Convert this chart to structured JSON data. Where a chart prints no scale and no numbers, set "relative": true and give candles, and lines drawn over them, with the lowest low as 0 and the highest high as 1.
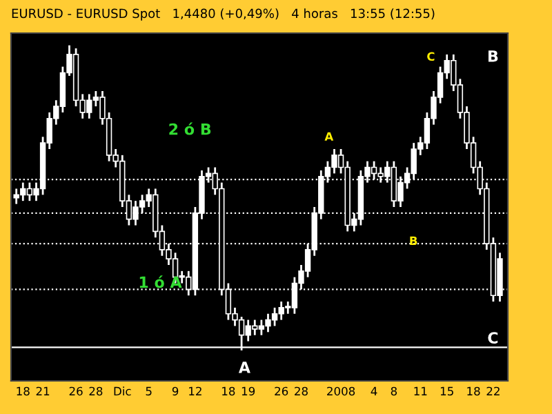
{
  "chart_data": {
    "type": "candlestick",
    "title": "EURUSD - EURUSD Spot   1,4480 (+0,49%)   4 horas   13:55 (12:55)",
    "relative": true,
    "color": "#ffffff",
    "categories": [
      null,
      "18",
      null,
      null,
      "21",
      null,
      null,
      null,
      null,
      "26",
      null,
      null,
      "28",
      null,
      null,
      null,
      "Dic",
      null,
      null,
      null,
      "5",
      null,
      null,
      null,
      "9",
      null,
      null,
      "12",
      null,
      null,
      null,
      null,
      "18",
      null,
      null,
      "19",
      null,
      null,
      null,
      null,
      "26",
      null,
      null,
      "28",
      null,
      null,
      null,
      null,
      null,
      "2008",
      null,
      null,
      null,
      null,
      "4",
      null,
      null,
      "8",
      null,
      null,
      null,
      "11",
      null,
      null,
      null,
      "15",
      null,
      null,
      null,
      "18",
      null,
      null,
      "22",
      null
    ],
    "ohlc": [
      [
        0.5,
        0.53,
        0.48,
        0.51
      ],
      [
        0.51,
        0.55,
        0.49,
        0.53
      ],
      [
        0.53,
        0.55,
        0.49,
        0.51
      ],
      [
        0.51,
        0.55,
        0.49,
        0.53
      ],
      [
        0.53,
        0.7,
        0.51,
        0.68
      ],
      [
        0.68,
        0.78,
        0.66,
        0.76
      ],
      [
        0.76,
        0.82,
        0.74,
        0.8
      ],
      [
        0.8,
        0.93,
        0.78,
        0.91
      ],
      [
        0.91,
        1.0,
        0.9,
        0.97
      ],
      [
        0.97,
        0.99,
        0.8,
        0.82
      ],
      [
        0.82,
        0.84,
        0.76,
        0.78
      ],
      [
        0.78,
        0.84,
        0.76,
        0.82
      ],
      [
        0.82,
        0.85,
        0.8,
        0.83
      ],
      [
        0.83,
        0.85,
        0.74,
        0.76
      ],
      [
        0.76,
        0.78,
        0.62,
        0.64
      ],
      [
        0.64,
        0.66,
        0.6,
        0.62
      ],
      [
        0.62,
        0.64,
        0.47,
        0.49
      ],
      [
        0.49,
        0.51,
        0.41,
        0.43
      ],
      [
        0.43,
        0.49,
        0.41,
        0.47
      ],
      [
        0.47,
        0.51,
        0.45,
        0.49
      ],
      [
        0.49,
        0.53,
        0.47,
        0.51
      ],
      [
        0.51,
        0.53,
        0.37,
        0.39
      ],
      [
        0.39,
        0.41,
        0.31,
        0.33
      ],
      [
        0.33,
        0.35,
        0.28,
        0.3
      ],
      [
        0.3,
        0.32,
        0.22,
        0.24
      ],
      [
        0.24,
        0.26,
        0.22,
        0.24
      ],
      [
        0.24,
        0.26,
        0.18,
        0.2
      ],
      [
        0.2,
        0.47,
        0.18,
        0.45
      ],
      [
        0.45,
        0.59,
        0.43,
        0.57
      ],
      [
        0.57,
        0.6,
        0.55,
        0.58
      ],
      [
        0.58,
        0.6,
        0.51,
        0.53
      ],
      [
        0.53,
        0.55,
        0.18,
        0.2
      ],
      [
        0.2,
        0.22,
        0.1,
        0.12
      ],
      [
        0.12,
        0.14,
        0.08,
        0.1
      ],
      [
        0.1,
        0.11,
        0.0,
        0.05
      ],
      [
        0.05,
        0.1,
        0.03,
        0.08
      ],
      [
        0.08,
        0.1,
        0.05,
        0.07
      ],
      [
        0.07,
        0.1,
        0.05,
        0.08
      ],
      [
        0.08,
        0.12,
        0.06,
        0.1
      ],
      [
        0.1,
        0.14,
        0.08,
        0.12
      ],
      [
        0.12,
        0.16,
        0.1,
        0.14
      ],
      [
        0.14,
        0.16,
        0.12,
        0.14
      ],
      [
        0.14,
        0.24,
        0.12,
        0.22
      ],
      [
        0.22,
        0.28,
        0.2,
        0.26
      ],
      [
        0.26,
        0.35,
        0.24,
        0.33
      ],
      [
        0.33,
        0.47,
        0.31,
        0.45
      ],
      [
        0.45,
        0.59,
        0.43,
        0.57
      ],
      [
        0.57,
        0.62,
        0.55,
        0.6
      ],
      [
        0.6,
        0.66,
        0.58,
        0.64
      ],
      [
        0.64,
        0.66,
        0.58,
        0.6
      ],
      [
        0.6,
        0.62,
        0.39,
        0.41
      ],
      [
        0.41,
        0.45,
        0.39,
        0.43
      ],
      [
        0.43,
        0.59,
        0.41,
        0.57
      ],
      [
        0.57,
        0.62,
        0.55,
        0.6
      ],
      [
        0.6,
        0.62,
        0.56,
        0.58
      ],
      [
        0.58,
        0.6,
        0.55,
        0.57
      ],
      [
        0.57,
        0.62,
        0.55,
        0.6
      ],
      [
        0.6,
        0.62,
        0.47,
        0.49
      ],
      [
        0.49,
        0.57,
        0.47,
        0.55
      ],
      [
        0.55,
        0.6,
        0.53,
        0.58
      ],
      [
        0.58,
        0.68,
        0.56,
        0.66
      ],
      [
        0.66,
        0.7,
        0.64,
        0.68
      ],
      [
        0.68,
        0.78,
        0.66,
        0.76
      ],
      [
        0.76,
        0.85,
        0.74,
        0.83
      ],
      [
        0.83,
        0.93,
        0.81,
        0.91
      ],
      [
        0.91,
        0.97,
        0.89,
        0.95
      ],
      [
        0.95,
        0.97,
        0.85,
        0.87
      ],
      [
        0.87,
        0.89,
        0.76,
        0.78
      ],
      [
        0.78,
        0.8,
        0.66,
        0.68
      ],
      [
        0.68,
        0.7,
        0.58,
        0.6
      ],
      [
        0.6,
        0.62,
        0.51,
        0.53
      ],
      [
        0.53,
        0.55,
        0.33,
        0.35
      ],
      [
        0.35,
        0.37,
        0.16,
        0.18
      ],
      [
        0.18,
        0.32,
        0.16,
        0.3
      ]
    ],
    "ref_lines": [
      {
        "axis": "y",
        "value": 0.56,
        "color": "#ffffff",
        "line_style": "dotted"
      },
      {
        "axis": "y",
        "value": 0.45,
        "color": "#ffffff",
        "line_style": "dotted"
      },
      {
        "axis": "y",
        "value": 0.35,
        "color": "#ffffff",
        "line_style": "dotted"
      },
      {
        "axis": "y",
        "value": 0.2,
        "color": "#ffffff",
        "line_style": "dotted"
      },
      {
        "axis": "y",
        "value": 0.01,
        "color": "#ffffff",
        "line_style": "solid"
      }
    ],
    "annotations": [
      "1 ó A",
      "2 ó B",
      "A",
      "B",
      "C",
      "A",
      "B",
      "C"
    ],
    "grid": false,
    "legend": false
  }
}
